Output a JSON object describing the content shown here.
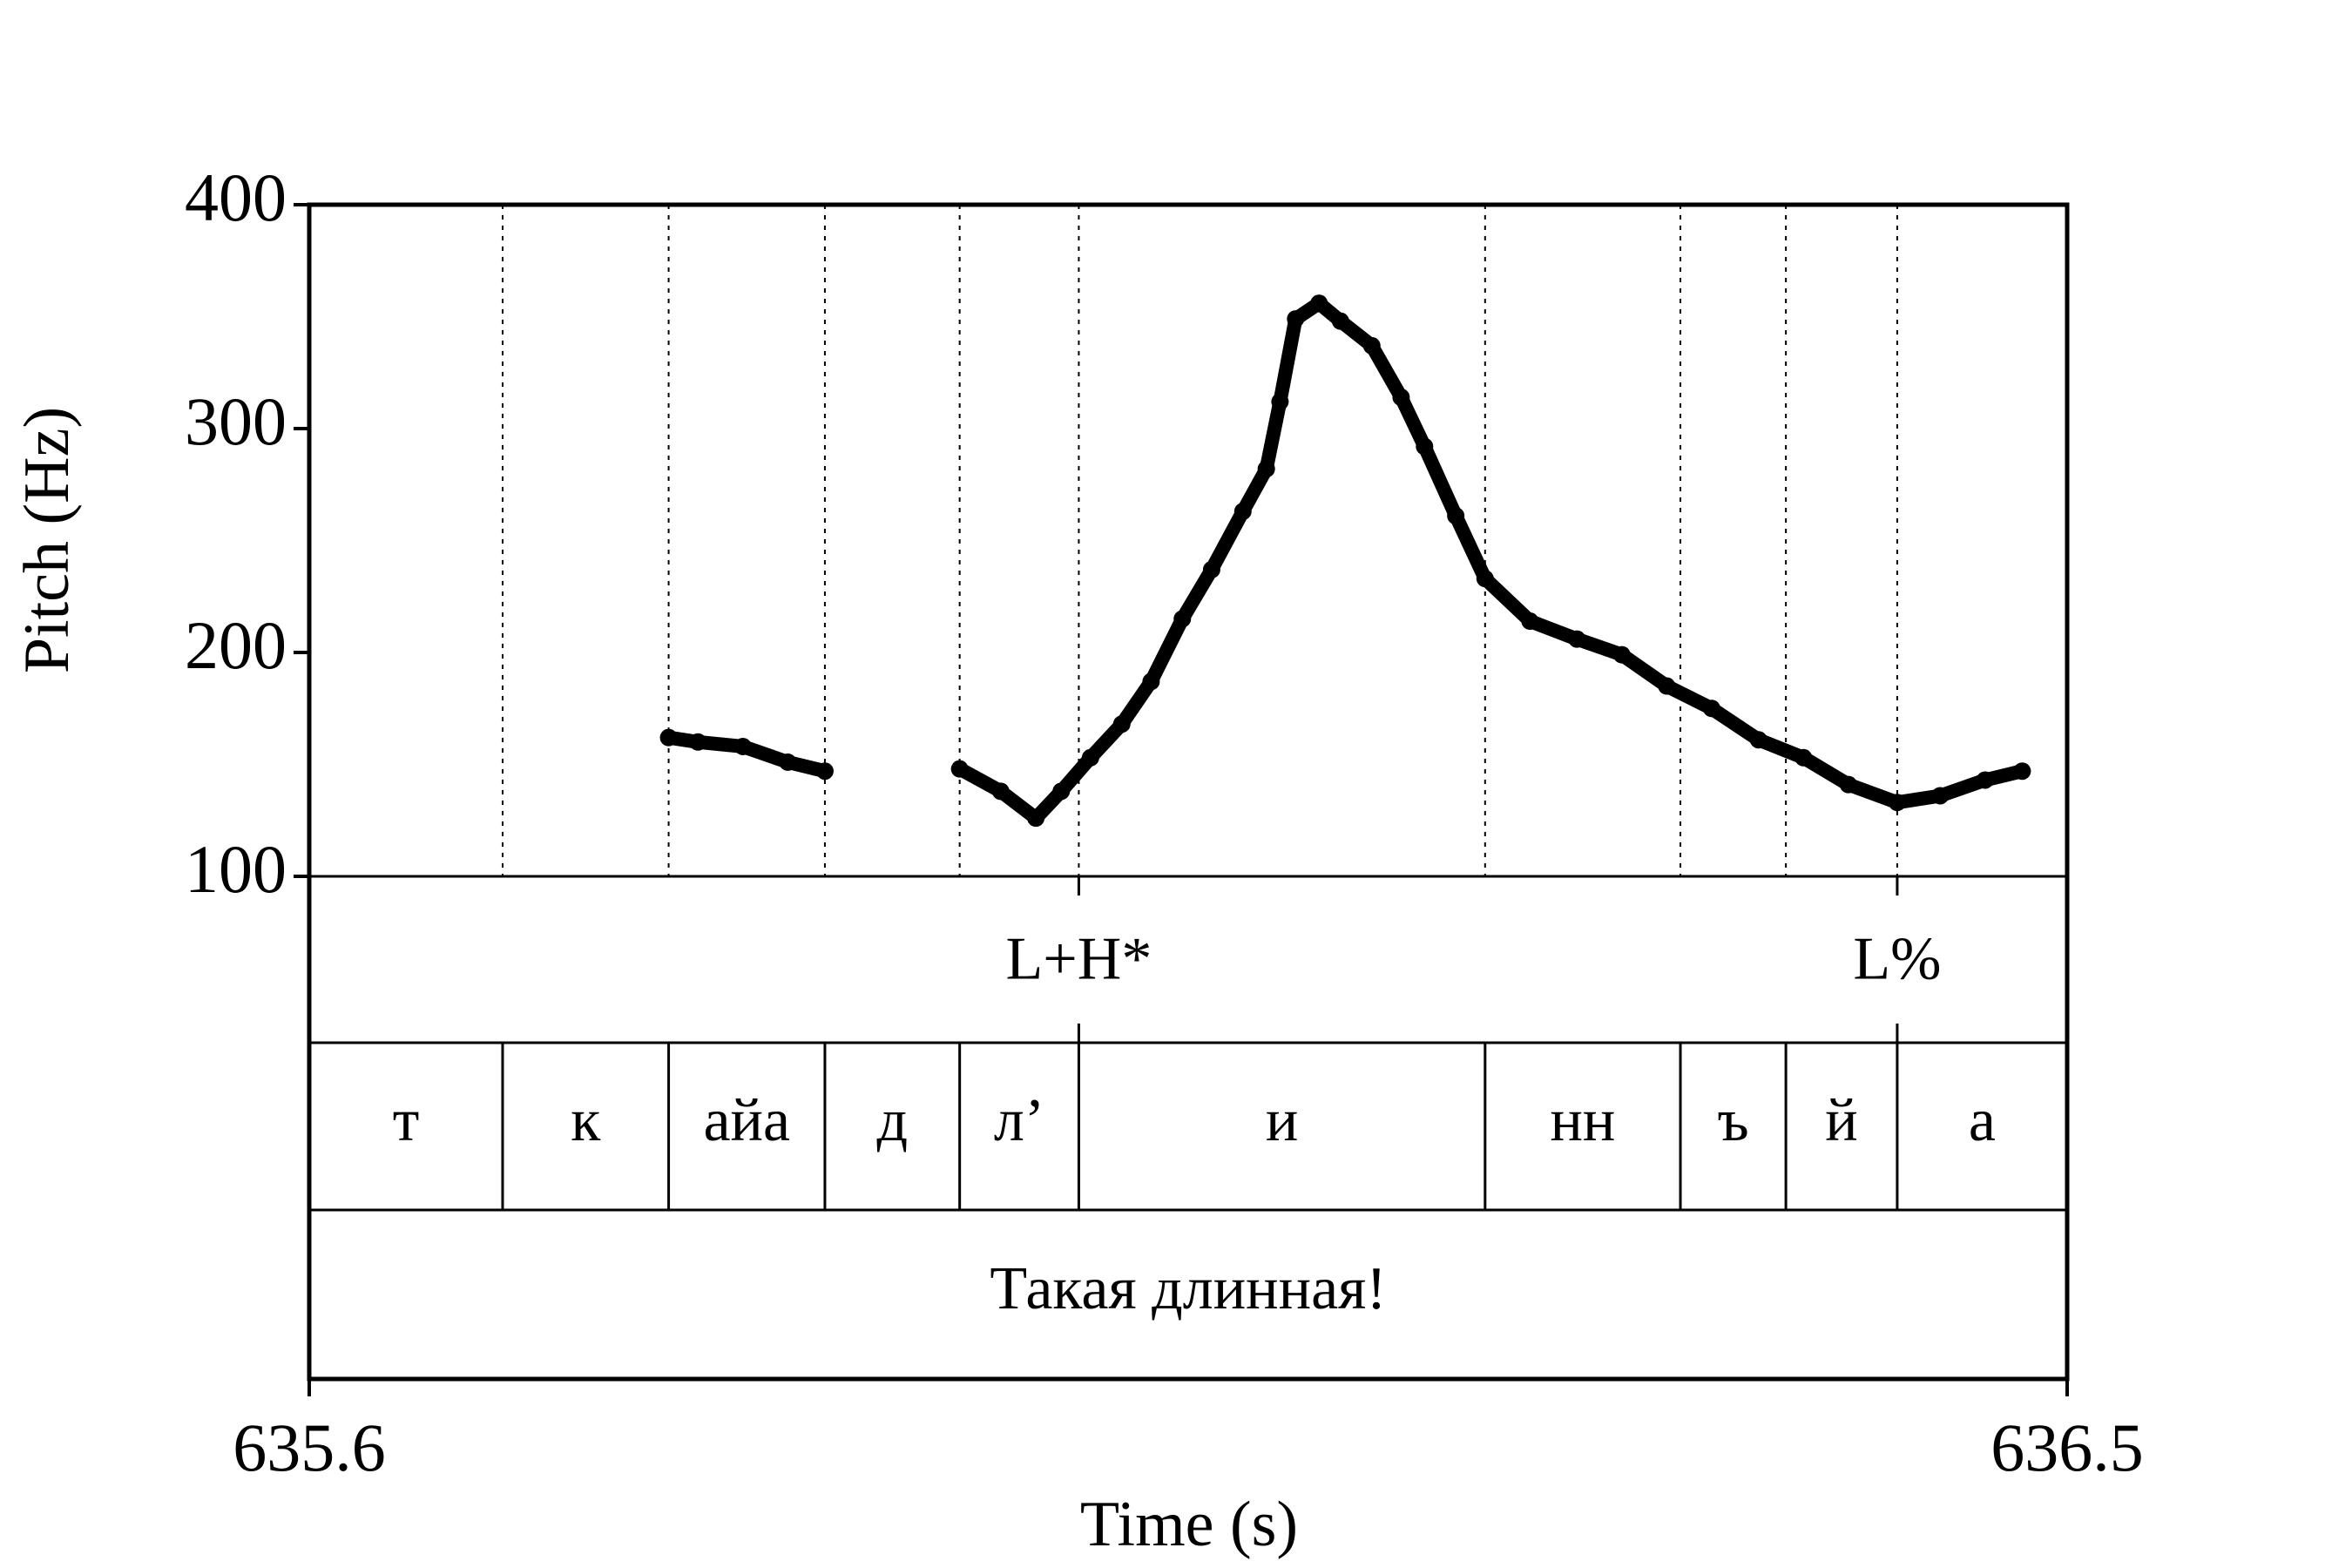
{
  "chart_data": {
    "type": "line",
    "xlabel": "Time (s)",
    "ylabel": "Pitch (Hz)",
    "xlim": [
      635.6,
      636.5
    ],
    "xticks": [
      635.6,
      636.5
    ],
    "ylim": [
      100,
      400
    ],
    "yticks": [
      100,
      200,
      300,
      400
    ],
    "color": "#000000",
    "x": [
      635.784,
      635.799,
      635.822,
      635.845,
      635.864,
      635.899,
      635.933,
      635.954,
      635.972,
      635.985,
      636.0,
      636.016,
      636.031,
      636.047,
      636.062,
      636.078,
      636.09,
      636.097,
      636.105,
      636.117,
      636.128,
      636.144,
      636.159,
      636.171,
      636.187,
      636.202,
      636.225,
      636.249,
      636.272,
      636.295,
      636.318,
      636.342,
      636.365,
      636.388,
      636.413,
      636.435,
      636.458,
      636.477
    ],
    "values": [
      162,
      160,
      158,
      151,
      147,
      null,
      148,
      138,
      126,
      138,
      153,
      168,
      187,
      215,
      237,
      263,
      282,
      312,
      349,
      356,
      348,
      337,
      314,
      292,
      261,
      233,
      214,
      206,
      199,
      185,
      175,
      161,
      153,
      141,
      133,
      136,
      143,
      147
    ],
    "tiers": [
      {
        "points": [
          635.994,
          636.413
        ],
        "labels": [
          "L+H*",
          "L%"
        ]
      },
      {
        "boundaries": [
          635.699,
          635.784,
          635.864,
          635.933,
          635.994,
          636.202,
          636.302,
          636.356,
          636.413
        ],
        "labels": [
          "т",
          "к",
          "айа",
          "д",
          "л’",
          "и",
          "нн",
          "ъ",
          "й",
          "а"
        ]
      },
      {
        "boundaries": [],
        "labels": [
          "Такая длинная!"
        ]
      }
    ]
  }
}
